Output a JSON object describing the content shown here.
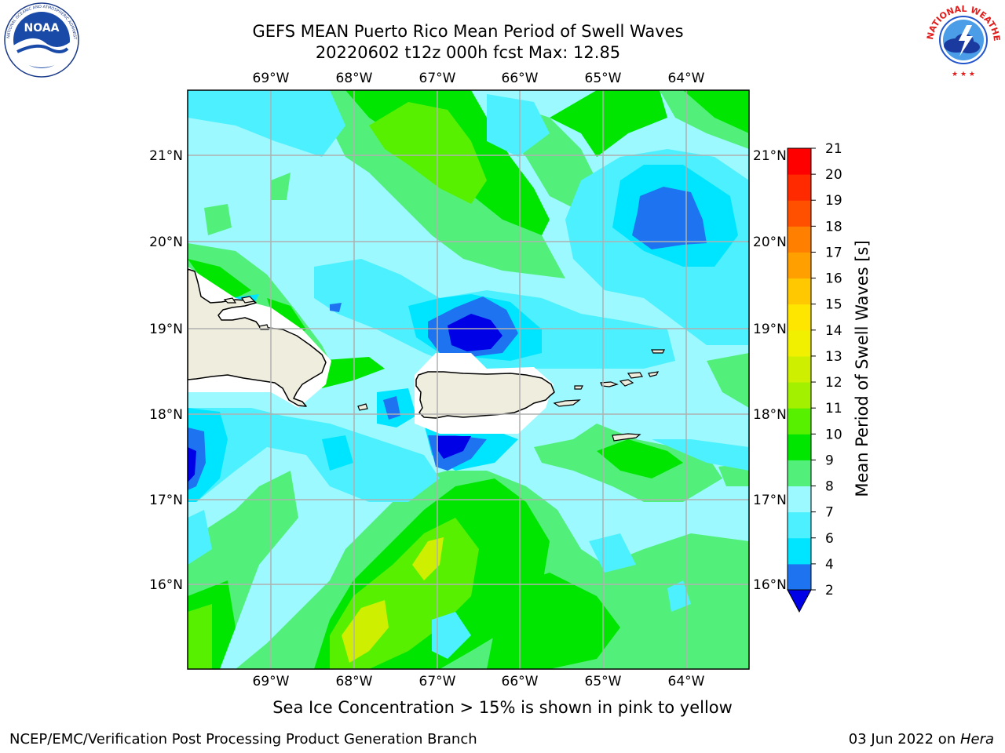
{
  "header": {
    "title_line1": "GEFS MEAN Puerto Rico Mean Period of Swell Waves",
    "title_line2": "20220602 t12z 000h fcst   Max: 12.85"
  },
  "logos": {
    "left": {
      "name": "noaa-logo",
      "text": "NOAA",
      "ring_text": "NATIONAL OCEANIC AND ATMOSPHERIC ADMINISTRATION · U.S. DEPARTMENT OF COMMERCE"
    },
    "right": {
      "name": "nws-logo",
      "ring_text": "NATIONAL WEATHER SERVICE"
    }
  },
  "map": {
    "lon_labels": [
      "69°W",
      "68°W",
      "67°W",
      "66°W",
      "65°W",
      "64°W"
    ],
    "lat_labels": [
      "21°N",
      "20°N",
      "19°N",
      "18°N",
      "17°N",
      "16°N"
    ],
    "lon_range": [
      -70.0,
      -63.25
    ],
    "lat_range": [
      15.0,
      21.75
    ],
    "gridlines": true,
    "colors": {
      "land": "#efedde",
      "grid": "#b0b0b0",
      "coast": "#000000"
    }
  },
  "colorbar": {
    "label": "Mean Period of Swell Waves [s]",
    "ticks": [
      "2",
      "4",
      "6",
      "7",
      "8",
      "9",
      "10",
      "11",
      "12",
      "13",
      "14",
      "15",
      "16",
      "17",
      "18",
      "19",
      "20",
      "21"
    ],
    "colors": [
      "#1e74f0",
      "#00e5ff",
      "#4df0ff",
      "#9cf9ff",
      "#52f07a",
      "#00e600",
      "#57f000",
      "#a3f000",
      "#cef000",
      "#f0f000",
      "#ffe600",
      "#ffc800",
      "#ffa000",
      "#ff8000",
      "#ff5000",
      "#ff2a00",
      "#ff0000"
    ],
    "under_color": "#0000e6",
    "extend": "min"
  },
  "caption": "Sea Ice Concentration > 15% is shown in pink to yellow",
  "footer": {
    "left": "NCEP/EMC/Verification Post Processing Product Generation Branch",
    "date": "03 Jun 2022 on ",
    "host": "Hera"
  }
}
